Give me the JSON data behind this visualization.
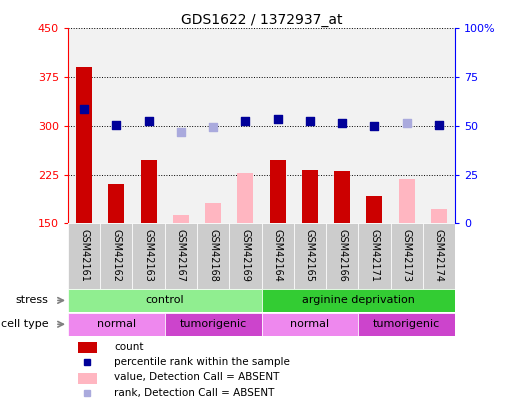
{
  "title": "GDS1622 / 1372937_at",
  "samples": [
    "GSM42161",
    "GSM42162",
    "GSM42163",
    "GSM42167",
    "GSM42168",
    "GSM42169",
    "GSM42164",
    "GSM42165",
    "GSM42166",
    "GSM42171",
    "GSM42173",
    "GSM42174"
  ],
  "count_values": [
    390,
    210,
    248,
    null,
    null,
    null,
    248,
    232,
    230,
    192,
    null,
    null
  ],
  "count_absent_values": [
    null,
    null,
    null,
    163,
    182,
    227,
    null,
    null,
    null,
    null,
    218,
    172
  ],
  "rank_values": [
    326,
    301,
    308,
    null,
    null,
    308,
    310,
    307,
    304,
    300,
    null,
    302
  ],
  "rank_absent_values": [
    null,
    null,
    null,
    290,
    298,
    null,
    null,
    null,
    null,
    null,
    304,
    null
  ],
  "ylim_left": [
    150,
    450
  ],
  "ylim_right": [
    0,
    100
  ],
  "yticks_left": [
    150,
    225,
    300,
    375,
    450
  ],
  "yticks_right": [
    0,
    25,
    50,
    75,
    100
  ],
  "stress_groups": [
    {
      "label": "control",
      "start": 0,
      "end": 6,
      "color": "#90EE90"
    },
    {
      "label": "arginine deprivation",
      "start": 6,
      "end": 12,
      "color": "#33CC33"
    }
  ],
  "cell_type_groups": [
    {
      "label": "normal",
      "start": 0,
      "end": 3,
      "color": "#EE88EE"
    },
    {
      "label": "tumorigenic",
      "start": 3,
      "end": 6,
      "color": "#CC44CC"
    },
    {
      "label": "normal",
      "start": 6,
      "end": 9,
      "color": "#EE88EE"
    },
    {
      "label": "tumorigenic",
      "start": 9,
      "end": 12,
      "color": "#CC44CC"
    }
  ],
  "bar_color_present": "#CC0000",
  "bar_color_absent": "#FFB6C1",
  "dot_color_present": "#000099",
  "dot_color_absent": "#AAAADD",
  "bar_width": 0.5,
  "dot_size": 35,
  "grid_color": "black",
  "grid_style": "dotted",
  "legend_items": [
    {
      "label": "count",
      "color": "#CC0000",
      "type": "bar"
    },
    {
      "label": "percentile rank within the sample",
      "color": "#000099",
      "type": "dot"
    },
    {
      "label": "value, Detection Call = ABSENT",
      "color": "#FFB6C1",
      "type": "bar"
    },
    {
      "label": "rank, Detection Call = ABSENT",
      "color": "#AAAADD",
      "type": "dot"
    }
  ],
  "sample_cell_color": "#CCCCCC",
  "bg_color": "white",
  "xlim": [
    -0.5,
    11.5
  ]
}
